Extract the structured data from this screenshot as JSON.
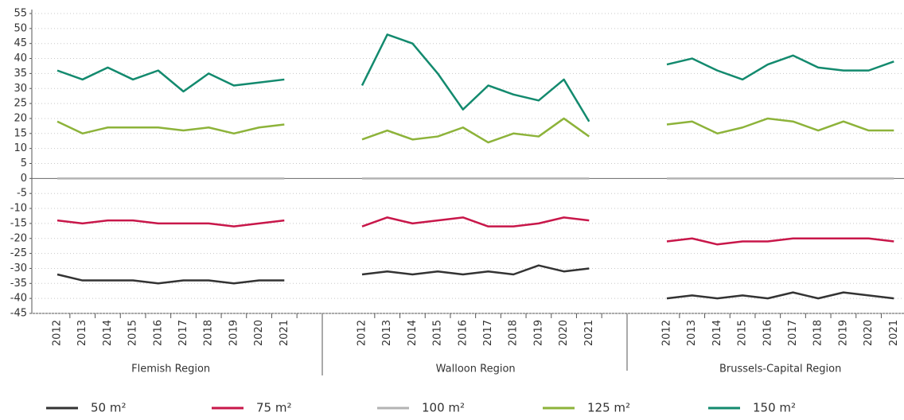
{
  "chart_data": {
    "type": "line",
    "groups": [
      {
        "label": "Flemish Region",
        "categories": [
          "2012",
          "2013",
          "2014",
          "2015",
          "2016",
          "2017",
          "2018",
          "2019",
          "2020",
          "2021"
        ]
      },
      {
        "label": "Walloon Region",
        "categories": [
          "2012",
          "2013",
          "2014",
          "2015",
          "2016",
          "2017",
          "2018",
          "2019",
          "2020",
          "2021"
        ]
      },
      {
        "label": "Brussels-Capital Region",
        "categories": [
          "2012",
          "2013",
          "2014",
          "2015",
          "2016",
          "2017",
          "2018",
          "2019",
          "2020",
          "2021"
        ]
      }
    ],
    "series": [
      {
        "name": "50 m²",
        "color": "#333333",
        "values": [
          -32,
          -34,
          -34,
          -34,
          -35,
          -34,
          -34,
          -35,
          -34,
          -34,
          -32,
          -31,
          -32,
          -31,
          -32,
          -31,
          -32,
          -29,
          -31,
          -30,
          -40,
          -39,
          -40,
          -39,
          -40,
          -38,
          -40,
          -38,
          -39,
          -40
        ]
      },
      {
        "name": "75 m²",
        "color": "#c8174a",
        "values": [
          -14,
          -15,
          -14,
          -14,
          -15,
          -15,
          -15,
          -16,
          -15,
          -14,
          -16,
          -13,
          -15,
          -14,
          -13,
          -16,
          -16,
          -15,
          -13,
          -14,
          -21,
          -20,
          -22,
          -21,
          -21,
          -20,
          -20,
          -20,
          -20,
          -21
        ]
      },
      {
        "name": "100 m²",
        "color": "#b3b3b3",
        "values": [
          0,
          0,
          0,
          0,
          0,
          0,
          0,
          0,
          0,
          0,
          0,
          0,
          0,
          0,
          0,
          0,
          0,
          0,
          0,
          0,
          0,
          0,
          0,
          0,
          0,
          0,
          0,
          0,
          0,
          0
        ]
      },
      {
        "name": "125 m²",
        "color": "#8db33a",
        "values": [
          19,
          15,
          17,
          17,
          17,
          16,
          17,
          15,
          17,
          18,
          13,
          16,
          13,
          14,
          17,
          12,
          15,
          14,
          20,
          14,
          18,
          19,
          15,
          17,
          20,
          19,
          16,
          19,
          16,
          16
        ]
      },
      {
        "name": "150 m²",
        "color": "#138a6e",
        "values": [
          36,
          33,
          37,
          33,
          36,
          29,
          35,
          31,
          32,
          33,
          31,
          48,
          45,
          35,
          23,
          31,
          28,
          26,
          33,
          19,
          38,
          40,
          36,
          33,
          38,
          41,
          37,
          36,
          36,
          39
        ]
      }
    ],
    "ylim": [
      -45,
      55
    ],
    "yticks": [
      -45,
      -40,
      -35,
      -30,
      -25,
      -20,
      -15,
      -10,
      -5,
      0,
      5,
      10,
      15,
      20,
      25,
      30,
      35,
      40,
      45,
      50,
      55
    ],
    "grid": true
  }
}
